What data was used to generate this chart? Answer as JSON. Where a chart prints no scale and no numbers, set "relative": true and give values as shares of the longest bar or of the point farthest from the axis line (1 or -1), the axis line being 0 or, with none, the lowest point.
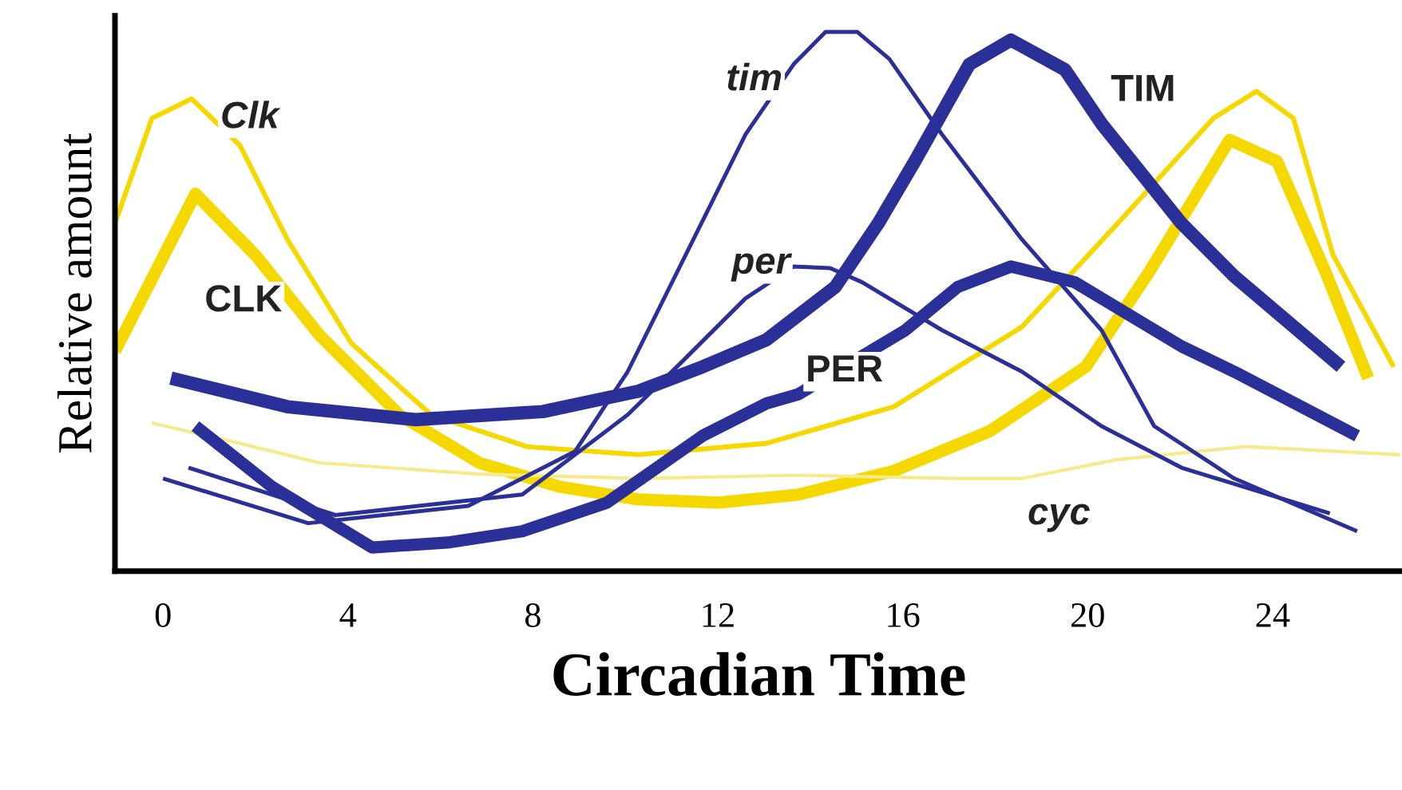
{
  "chart_data": {
    "type": "line",
    "relative": true,
    "xlabel": "Circadian Time",
    "ylabel": "Relative amount",
    "xlim": [
      -1.04,
      26.8
    ],
    "xticks": [
      0,
      4,
      8,
      12,
      16,
      20,
      24
    ],
    "series": [
      {
        "name": "Clk",
        "color": "#f5d800",
        "x": [
          -1.04,
          -0.24,
          0.62,
          1.66,
          2.69,
          4.07,
          5.8,
          7.87,
          10.29,
          13.05,
          15.81,
          18.58,
          20.65,
          22.72,
          23.65,
          24.45,
          25.31,
          26.62
        ],
        "values": [
          0.645,
          0.84,
          0.876,
          0.79,
          0.615,
          0.423,
          0.29,
          0.231,
          0.216,
          0.237,
          0.305,
          0.453,
          0.645,
          0.84,
          0.89,
          0.84,
          0.586,
          0.379
        ]
      },
      {
        "name": "CLK",
        "color": "#f5d800",
        "x": [
          -1.04,
          0.7,
          2.0,
          3.38,
          5.11,
          6.84,
          8.56,
          10.29,
          12.02,
          13.74,
          15.81,
          17.89,
          19.96,
          21.34,
          23.07,
          24.1,
          25.14,
          26.07
        ],
        "values": [
          0.408,
          0.7,
          0.586,
          0.438,
          0.29,
          0.201,
          0.157,
          0.133,
          0.127,
          0.142,
          0.186,
          0.26,
          0.379,
          0.556,
          0.8,
          0.76,
          0.556,
          0.358
        ]
      },
      {
        "name": "cyc",
        "color": "#f7ea8c",
        "x": [
          -0.24,
          1.66,
          3.38,
          6.84,
          10.29,
          13.74,
          17.19,
          18.58,
          20.65,
          23.41,
          26.76
        ],
        "values": [
          0.275,
          0.237,
          0.201,
          0.18,
          0.172,
          0.178,
          0.172,
          0.172,
          0.207,
          0.231,
          0.216
        ]
      },
      {
        "name": "tim",
        "color": "#2b2f98",
        "x": [
          0,
          3.14,
          6.6,
          8.91,
          10.05,
          12.6,
          13.64,
          14.33,
          15.02,
          15.71,
          16.85,
          18.58,
          20.3,
          21.44,
          23.17,
          25.83
        ],
        "values": [
          0.172,
          0.089,
          0.121,
          0.222,
          0.37,
          0.81,
          0.94,
          1.0,
          1.0,
          0.95,
          0.81,
          0.615,
          0.447,
          0.269,
          0.172,
          0.074
        ]
      },
      {
        "name": "TIM",
        "color": "#2b2f98",
        "x": [
          0.17,
          2.69,
          5.46,
          8.22,
          10.29,
          11.67,
          13.05,
          14.54,
          15.47,
          16.26,
          17.44,
          18.34,
          19.51,
          20.3,
          22.03,
          23.17,
          25.48
        ],
        "values": [
          0.358,
          0.305,
          0.281,
          0.296,
          0.334,
          0.379,
          0.429,
          0.527,
          0.645,
          0.76,
          0.94,
          0.985,
          0.93,
          0.83,
          0.645,
          0.547,
          0.379
        ]
      },
      {
        "name": "per",
        "color": "#2b2f98",
        "x": [
          0.55,
          3.73,
          7.77,
          10.05,
          11.22,
          12.6,
          13.64,
          14.43,
          15.12,
          16.85,
          18.58,
          20.3,
          22.03,
          25.24
        ],
        "values": [
          0.192,
          0.104,
          0.142,
          0.29,
          0.388,
          0.506,
          0.565,
          0.562,
          0.536,
          0.447,
          0.37,
          0.269,
          0.192,
          0.107
        ]
      },
      {
        "name": "PER",
        "color": "#2b2f98",
        "x": [
          0.7,
          2.35,
          4.52,
          6.15,
          7.77,
          9.6,
          11.67,
          13.05,
          13.74,
          16.06,
          17.19,
          18.34,
          19.72,
          22.03,
          23.17,
          25.83
        ],
        "values": [
          0.269,
          0.157,
          0.044,
          0.053,
          0.074,
          0.127,
          0.251,
          0.311,
          0.328,
          0.447,
          0.527,
          0.565,
          0.536,
          0.417,
          0.37,
          0.251
        ]
      }
    ]
  }
}
